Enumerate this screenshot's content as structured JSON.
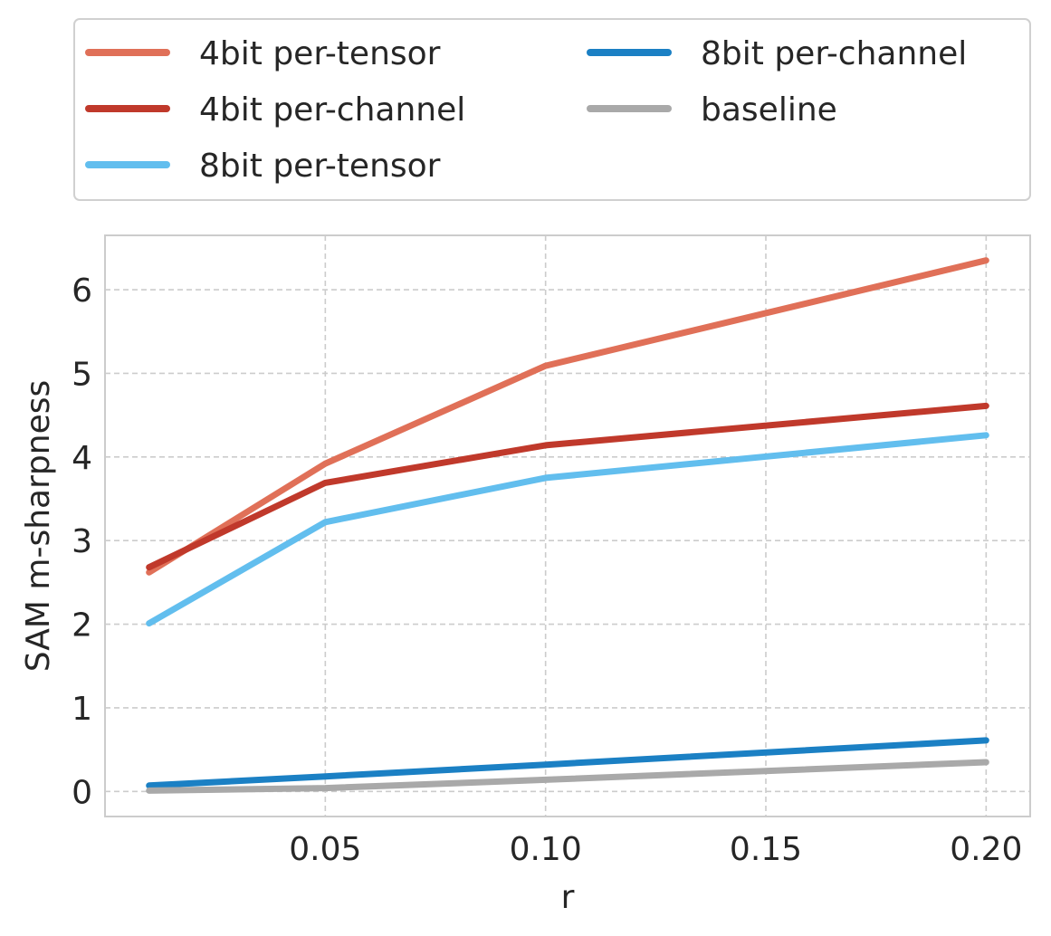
{
  "chart_data": {
    "type": "line",
    "title": "",
    "xlabel": "r",
    "ylabel": "SAM m-sharpness",
    "x": [
      0.01,
      0.05,
      0.1,
      0.2
    ],
    "xlim": [
      0.0,
      0.21
    ],
    "ylim": [
      -0.3,
      6.65
    ],
    "xticks": [
      0.05,
      0.1,
      0.15,
      0.2
    ],
    "xtick_labels": [
      "0.05",
      "0.10",
      "0.15",
      "0.20"
    ],
    "yticks": [
      0,
      1,
      2,
      3,
      4,
      5,
      6
    ],
    "ytick_labels": [
      "0",
      "1",
      "2",
      "3",
      "4",
      "5",
      "6"
    ],
    "grid": true,
    "legend_position": "top, outside plot, 2 columns",
    "series": [
      {
        "name": "4bit per-tensor",
        "color": "#E07058",
        "values": [
          2.62,
          3.92,
          5.09,
          6.35
        ]
      },
      {
        "name": "4bit per-channel",
        "color": "#C0392B",
        "values": [
          2.68,
          3.69,
          4.14,
          4.61
        ]
      },
      {
        "name": "8bit per-tensor",
        "color": "#62BEEE",
        "values": [
          2.01,
          3.22,
          3.75,
          4.26
        ]
      },
      {
        "name": "8bit per-channel",
        "color": "#1B80C4",
        "values": [
          0.07,
          0.18,
          0.32,
          0.61
        ]
      },
      {
        "name": "baseline",
        "color": "#A9A9A9",
        "values": [
          0.01,
          0.04,
          0.14,
          0.35
        ]
      }
    ]
  }
}
